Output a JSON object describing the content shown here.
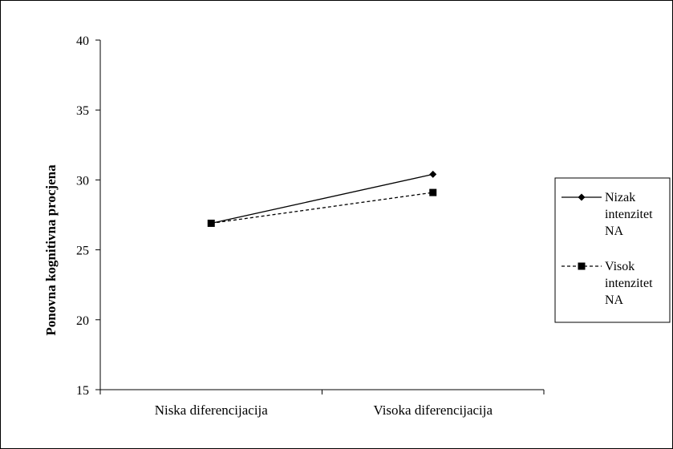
{
  "chart_data": {
    "type": "line",
    "title": "",
    "xlabel": "",
    "ylabel": "Ponovna kognitivna procjena",
    "categories": [
      "Niska diferencijacija",
      "Visoka diferencijacija"
    ],
    "ylim": [
      15,
      40
    ],
    "yticks": [
      15,
      20,
      25,
      30,
      35,
      40
    ],
    "grid": false,
    "legend_position": "right",
    "series": [
      {
        "name": "Nizak intenzitet NA",
        "name_lines": [
          "Nizak",
          "intenzitet",
          "NA"
        ],
        "values": [
          26.9,
          30.4
        ],
        "marker": "diamond",
        "line_style": "solid",
        "color": "#000000"
      },
      {
        "name": "Visok intenzitet NA",
        "name_lines": [
          "Visok",
          "intenzitet",
          "NA"
        ],
        "values": [
          26.9,
          29.1
        ],
        "marker": "square",
        "line_style": "dashed",
        "color": "#000000"
      }
    ]
  }
}
